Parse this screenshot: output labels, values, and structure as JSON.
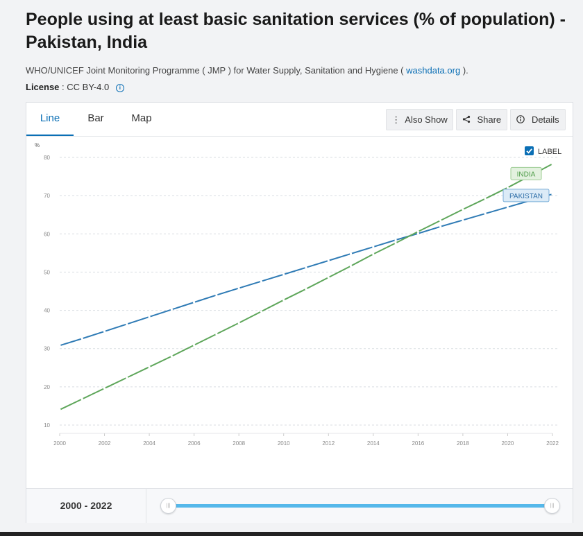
{
  "header": {
    "title": "People using at least basic sanitation services (% of population) - Pakistan, India",
    "source_prefix": "WHO/UNICEF Joint Monitoring Programme ( JMP ) for Water Supply, Sanitation and Hygiene (",
    "source_link": "washdata.org",
    "source_suffix": ").",
    "license_label": "License",
    "license_value": ": CC BY-4.0"
  },
  "tabs": [
    {
      "label": "Line"
    },
    {
      "label": "Bar"
    },
    {
      "label": "Map"
    }
  ],
  "toolbar": {
    "also_show": "Also Show",
    "share": "Share",
    "details": "Details"
  },
  "legend_toggle": {
    "label": "LABEL",
    "checked": true
  },
  "range": {
    "label_start": "2000",
    "label_sep": " - ",
    "label_end": "2022"
  },
  "colors": {
    "pakistan": "#2f7bb5",
    "india": "#5ea65a",
    "accent": "#0b6fb5"
  },
  "chart_data": {
    "type": "line",
    "title": "People using at least basic sanitation services (% of population) - Pakistan, India",
    "ylabel": "%",
    "xlabel": "",
    "ylim": [
      10,
      80
    ],
    "xlim": [
      2000,
      2022
    ],
    "yticks": [
      10,
      20,
      30,
      40,
      50,
      60,
      70,
      80
    ],
    "xticks": [
      2000,
      2002,
      2004,
      2006,
      2008,
      2010,
      2012,
      2014,
      2016,
      2018,
      2020,
      2022
    ],
    "grid": true,
    "x": [
      2000,
      2001,
      2002,
      2003,
      2004,
      2005,
      2006,
      2007,
      2008,
      2009,
      2010,
      2011,
      2012,
      2013,
      2014,
      2015,
      2016,
      2017,
      2018,
      2019,
      2020,
      2021,
      2022
    ],
    "series": [
      {
        "name": "PAKISTAN",
        "values": [
          30.8,
          32.6,
          34.5,
          36.4,
          38.3,
          40.2,
          42.1,
          44.0,
          45.8,
          47.6,
          49.4,
          51.2,
          53.0,
          54.8,
          56.6,
          58.4,
          60.1,
          61.9,
          63.6,
          65.3,
          67.0,
          68.7,
          70.4
        ]
      },
      {
        "name": "INDIA",
        "values": [
          14.0,
          16.8,
          19.6,
          22.4,
          25.2,
          28.0,
          30.9,
          33.8,
          36.7,
          39.7,
          42.7,
          45.6,
          48.6,
          51.6,
          54.7,
          57.6,
          60.6,
          63.5,
          66.4,
          69.2,
          72.1,
          75.2,
          78.3
        ]
      }
    ]
  }
}
